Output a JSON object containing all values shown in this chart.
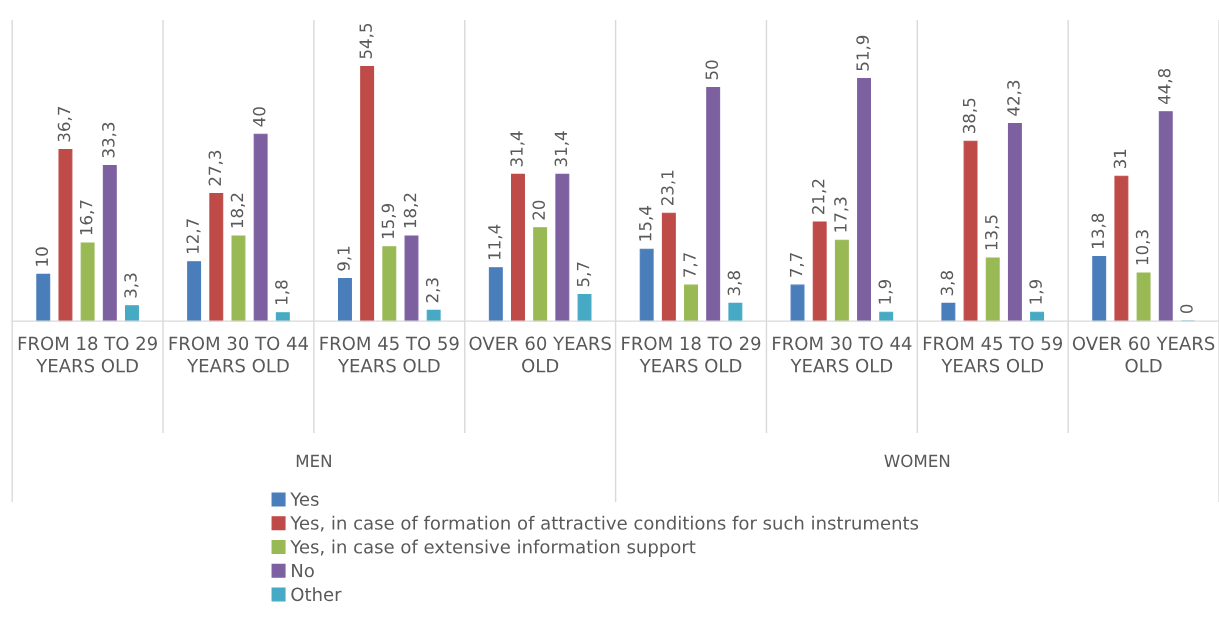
{
  "chart_data": {
    "type": "bar",
    "categories": [
      "FROM 18 TO 29 YEARS OLD",
      "FROM 30 TO 44 YEARS OLD",
      "FROM 45 TO 59 YEARS OLD",
      "OVER 60 YEARS OLD",
      "FROM 18 TO 29 YEARS OLD",
      "FROM 30 TO 44 YEARS OLD",
      "FROM 45 TO 59 YEARS OLD",
      "OVER 60 YEARS OLD"
    ],
    "series": [
      {
        "name": "Yes",
        "color": "#4a7ebb",
        "values": [
          10,
          12.7,
          9.1,
          11.4,
          15.4,
          7.7,
          3.8,
          13.8
        ],
        "value_labels": [
          "10",
          "12,7",
          "9,1",
          "11,4",
          "15,4",
          "7,7",
          "3,8",
          "13,8"
        ]
      },
      {
        "name": "Yes, in case of formation of attractive conditions for such instruments",
        "color": "#be4b48",
        "values": [
          36.7,
          27.3,
          54.5,
          31.4,
          23.1,
          21.2,
          38.5,
          31
        ],
        "value_labels": [
          "36,7",
          "27,3",
          "54,5",
          "31,4",
          "23,1",
          "21,2",
          "38,5",
          "31"
        ]
      },
      {
        "name": "Yes, in case of extensive information support",
        "color": "#98b954",
        "values": [
          16.7,
          18.2,
          15.9,
          20,
          7.7,
          17.3,
          13.5,
          10.3
        ],
        "value_labels": [
          "16,7",
          "18,2",
          "15,9",
          "20",
          "7,7",
          "17,3",
          "13,5",
          "10,3"
        ]
      },
      {
        "name": "No",
        "color": "#7d60a0",
        "values": [
          33.3,
          40,
          18.2,
          31.4,
          50,
          51.9,
          42.3,
          44.8
        ],
        "value_labels": [
          "33,3",
          "40",
          "18,2",
          "31,4",
          "50",
          "51,9",
          "42,3",
          "44,8"
        ]
      },
      {
        "name": "Other",
        "color": "#46aac5",
        "values": [
          3.3,
          1.8,
          2.3,
          5.7,
          3.8,
          1.9,
          1.9,
          0
        ],
        "value_labels": [
          "3,3",
          "1,8",
          "2,3",
          "5,7",
          "3,8",
          "1,9",
          "1,9",
          "0"
        ]
      }
    ],
    "annotations": [
      "MEN",
      "WOMEN"
    ],
    "legend": "bottom"
  }
}
